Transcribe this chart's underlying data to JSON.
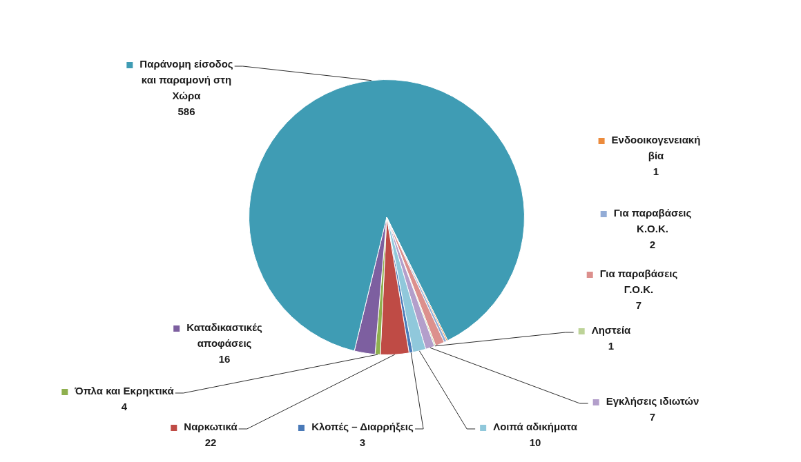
{
  "chart_data": {
    "type": "pie",
    "categories": [
      "Κλοπές – Διαρρήξεις",
      "Ναρκωτικά",
      "Όπλα και Εκρηκτικά",
      "Καταδικαστικές αποφάσεις",
      "Παράνομη είσοδος και παραμονή στη Χώρα",
      "Ενδοοικογενειακή βία",
      "Για παραβάσεις Κ.Ο.Κ.",
      "Για παραβάσεις Γ.Ο.Κ.",
      "Ληστεία",
      "Εγκλήσεις ιδιωτών",
      "Λοιπά αδικήματα"
    ],
    "values": [
      3,
      22,
      4,
      16,
      586,
      1,
      2,
      7,
      1,
      7,
      10
    ],
    "colors": [
      "#4a7ab8",
      "#bf4b45",
      "#8fb04f",
      "#7d5fa0",
      "#3f9cb4",
      "#ec8b3c",
      "#93acd6",
      "#dc908d",
      "#bdd398",
      "#b39fcb",
      "#90c8db"
    ],
    "data_labels": true,
    "legend": true
  }
}
